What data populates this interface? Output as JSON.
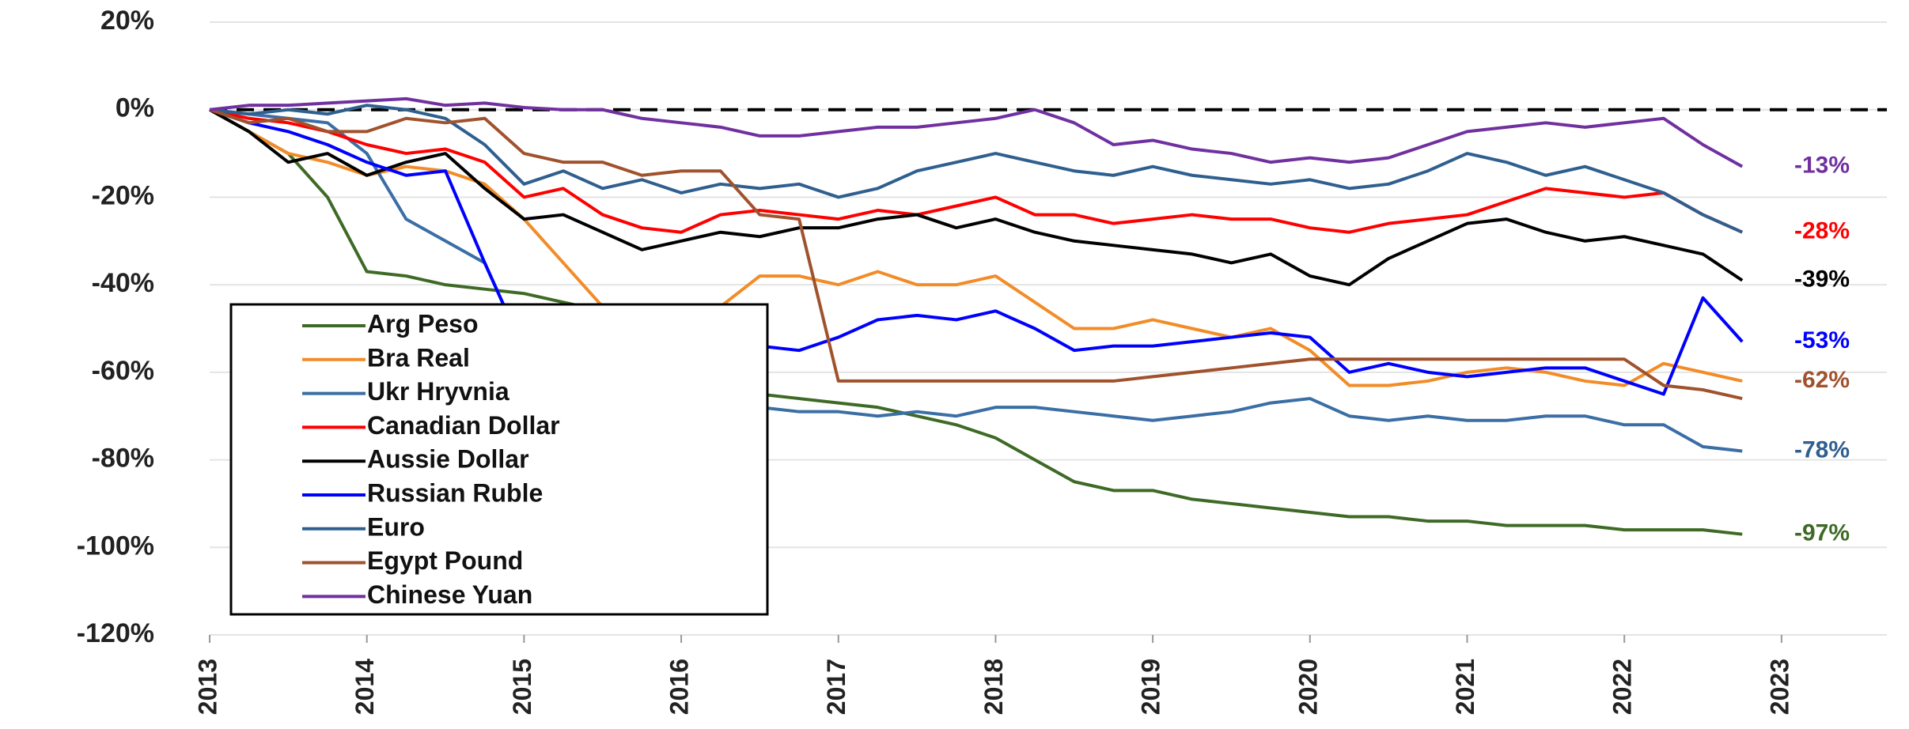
{
  "chart_data": {
    "type": "line",
    "x": [
      2013,
      2013.25,
      2013.5,
      2013.75,
      2014,
      2014.25,
      2014.5,
      2014.75,
      2015,
      2015.25,
      2015.5,
      2015.75,
      2016,
      2016.25,
      2016.5,
      2016.75,
      2017,
      2017.25,
      2017.5,
      2017.75,
      2018,
      2018.25,
      2018.5,
      2018.75,
      2019,
      2019.25,
      2019.5,
      2019.75,
      2020,
      2020.25,
      2020.5,
      2020.75,
      2021,
      2021.25,
      2021.5,
      2021.75,
      2022,
      2022.25,
      2022.5,
      2022.75
    ],
    "series": [
      {
        "name": "Arg Peso",
        "color": "#3e6a26",
        "values": [
          0,
          -5,
          -10,
          -20,
          -37,
          -38,
          -40,
          -41,
          -42,
          -44,
          -46,
          -50,
          -60,
          -62,
          -65,
          -66,
          -67,
          -68,
          -70,
          -72,
          -75,
          -80,
          -85,
          -87,
          -87,
          -89,
          -90,
          -91,
          -92,
          -93,
          -93,
          -94,
          -94,
          -95,
          -95,
          -95,
          -96,
          -96,
          -96,
          -97
        ]
      },
      {
        "name": "Bra Real",
        "color": "#f28c28",
        "values": [
          0,
          -5,
          -10,
          -12,
          -15,
          -13,
          -14,
          -17,
          -25,
          -35,
          -45,
          -55,
          -52,
          -45,
          -38,
          -38,
          -40,
          -37,
          -40,
          -40,
          -38,
          -44,
          -50,
          -50,
          -48,
          -50,
          -52,
          -50,
          -55,
          -63,
          -63,
          -62,
          -60,
          -59,
          -60,
          -62,
          -63,
          -58,
          -60,
          -62
        ]
      },
      {
        "name": "Ukr Hryvnia",
        "color": "#3a6ea5",
        "values": [
          0,
          -1,
          -2,
          -3,
          -10,
          -25,
          -30,
          -35,
          -55,
          -62,
          -65,
          -66,
          -67,
          -68,
          -68,
          -69,
          -69,
          -70,
          -69,
          -70,
          -68,
          -68,
          -69,
          -70,
          -71,
          -70,
          -69,
          -67,
          -66,
          -70,
          -71,
          -70,
          -71,
          -71,
          -70,
          -70,
          -72,
          -72,
          -77,
          -78
        ]
      },
      {
        "name": "Canadian Dollar",
        "color": "#ff0000",
        "values": [
          0,
          -2,
          -3,
          -5,
          -8,
          -10,
          -9,
          -12,
          -20,
          -18,
          -24,
          -27,
          -28,
          -24,
          -23,
          -24,
          -25,
          -23,
          -24,
          -22,
          -20,
          -24,
          -24,
          -26,
          -25,
          -24,
          -25,
          -25,
          -27,
          -28,
          -26,
          -25,
          -24,
          -21,
          -18,
          -19,
          -20,
          -19,
          -24,
          -28
        ]
      },
      {
        "name": "Aussie Dollar",
        "color": "#000000",
        "values": [
          0,
          -5,
          -12,
          -10,
          -15,
          -12,
          -10,
          -18,
          -25,
          -24,
          -28,
          -32,
          -30,
          -28,
          -29,
          -27,
          -27,
          -25,
          -24,
          -27,
          -25,
          -28,
          -30,
          -31,
          -32,
          -33,
          -35,
          -33,
          -38,
          -40,
          -34,
          -30,
          -26,
          -25,
          -28,
          -30,
          -29,
          -31,
          -33,
          -39
        ]
      },
      {
        "name": "Russian Ruble",
        "color": "#0000ff",
        "values": [
          0,
          -3,
          -5,
          -8,
          -12,
          -15,
          -14,
          -35,
          -55,
          -45,
          -50,
          -58,
          -60,
          -55,
          -54,
          -55,
          -52,
          -48,
          -47,
          -48,
          -46,
          -50,
          -55,
          -54,
          -54,
          -53,
          -52,
          -51,
          -52,
          -60,
          -58,
          -60,
          -61,
          -60,
          -59,
          -59,
          -62,
          -65,
          -43,
          -53
        ]
      },
      {
        "name": "Euro",
        "color": "#2f5f8f",
        "values": [
          0,
          -1,
          0,
          -1,
          1,
          0,
          -2,
          -8,
          -17,
          -14,
          -18,
          -16,
          -19,
          -17,
          -18,
          -17,
          -20,
          -18,
          -14,
          -12,
          -10,
          -12,
          -14,
          -15,
          -13,
          -15,
          -16,
          -17,
          -16,
          -18,
          -17,
          -14,
          -10,
          -12,
          -15,
          -13,
          -16,
          -19,
          -24,
          -28
        ]
      },
      {
        "name": "Egypt Pound",
        "color": "#a0522d",
        "values": [
          0,
          -3,
          -2,
          -5,
          -5,
          -2,
          -3,
          -2,
          -10,
          -12,
          -12,
          -15,
          -14,
          -14,
          -24,
          -25,
          -62,
          -62,
          -62,
          -62,
          -62,
          -62,
          -62,
          -62,
          -61,
          -60,
          -59,
          -58,
          -57,
          -57,
          -57,
          -57,
          -57,
          -57,
          -57,
          -57,
          -57,
          -63,
          -64,
          -66
        ]
      },
      {
        "name": "Chinese Yuan",
        "color": "#7030a0",
        "values": [
          0,
          1,
          1,
          1.5,
          2,
          2.5,
          1,
          1.5,
          0.5,
          0,
          0,
          -2,
          -3,
          -4,
          -6,
          -6,
          -5,
          -4,
          -4,
          -3,
          -2,
          0,
          -3,
          -8,
          -7,
          -9,
          -10,
          -12,
          -11,
          -12,
          -11,
          -8,
          -5,
          -4,
          -3,
          -4,
          -3,
          -2,
          -8,
          -13
        ]
      }
    ],
    "annotations": [
      {
        "text": "-13%",
        "y": -13,
        "color": "#7030a0"
      },
      {
        "text": "-28%",
        "y": -28,
        "color": "#ff0000"
      },
      {
        "text": "-39%",
        "y": -39,
        "color": "#000000"
      },
      {
        "text": "-53%",
        "y": -53,
        "color": "#0000ff"
      },
      {
        "text": "-62%",
        "y": -62,
        "color": "#a0522d"
      },
      {
        "text": "-78%",
        "y": -78,
        "color": "#2f5f8f"
      },
      {
        "text": "-97%",
        "y": -97,
        "color": "#3e6a26"
      }
    ],
    "xlim": [
      2013,
      2023.67
    ],
    "xticks": [
      2013,
      2014,
      2015,
      2016,
      2017,
      2018,
      2019,
      2020,
      2021,
      2022,
      2023
    ],
    "ylim": [
      -120,
      20
    ],
    "yticks": [
      {
        "value": -120,
        "label": "-120%"
      },
      {
        "value": -100,
        "label": "-100%"
      },
      {
        "value": -80,
        "label": "-80%"
      },
      {
        "value": -60,
        "label": "-60%"
      },
      {
        "value": -40,
        "label": "-40%"
      },
      {
        "value": -20,
        "label": "-20%"
      },
      {
        "value": 0,
        "label": "0%"
      },
      {
        "value": 20,
        "label": "20%"
      }
    ],
    "grid": true,
    "legend": "lower left"
  }
}
